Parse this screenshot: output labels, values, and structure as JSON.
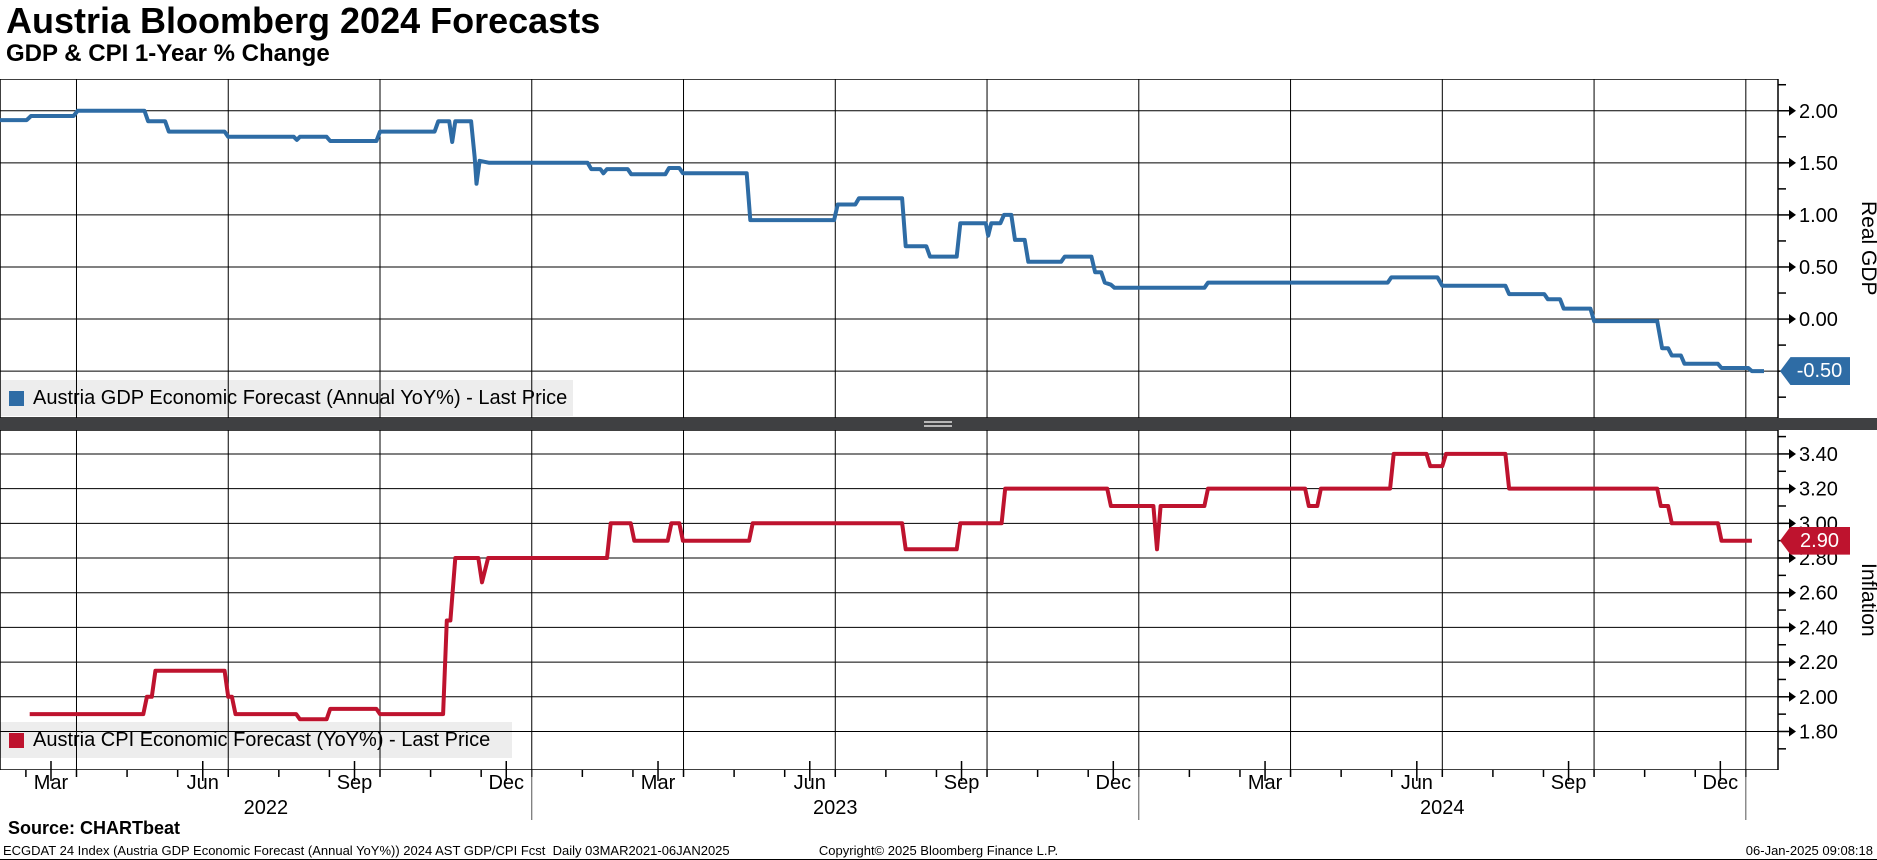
{
  "header": {
    "title": "Austria Bloomberg 2024 Forecasts",
    "subtitle": "GDP & CPI 1-Year % Change"
  },
  "footer": {
    "source": "Source: CHARTbeat",
    "index_line": "ECGDAT 24 Index (Austria GDP Economic Forecast (Annual YoY%)) 2024 AST GDP/CPI Fcst  Daily 03MAR2021-06JAN2025",
    "copyright": "Copyright© 2025 Bloomberg Finance L.P.",
    "timestamp": "06-Jan-2025 09:08:18"
  },
  "colors": {
    "gdp_line": "#2e6ca5",
    "cpi_line": "#be132e",
    "grid": "#000000",
    "legend_band": "#ededed",
    "divider": "#3f4042",
    "divider_handle": "#b8b8b8",
    "badge_text": "#ffffff"
  },
  "chart_data": {
    "type": "line",
    "title": "Austria Bloomberg 2024 Forecasts",
    "subtitle": "GDP & CPI 1-Year % Change",
    "x_axis": {
      "unit": "decimal_year",
      "range": [
        2022.124,
        2025.053
      ],
      "gridlines": [
        2022.25,
        2022.5,
        2022.75,
        2023.0,
        2023.25,
        2023.5,
        2023.75,
        2024.0,
        2024.25,
        2024.5,
        2024.75,
        2025.0
      ],
      "year_separators": [
        2023.0,
        2024.0,
        2025.0
      ],
      "month_labels": [
        {
          "t": 2022.208,
          "label": "Mar"
        },
        {
          "t": 2022.458,
          "label": "Jun"
        },
        {
          "t": 2022.708,
          "label": "Sep"
        },
        {
          "t": 2022.958,
          "label": "Dec"
        },
        {
          "t": 2023.208,
          "label": "Mar"
        },
        {
          "t": 2023.458,
          "label": "Jun"
        },
        {
          "t": 2023.708,
          "label": "Sep"
        },
        {
          "t": 2023.958,
          "label": "Dec"
        },
        {
          "t": 2024.208,
          "label": "Mar"
        },
        {
          "t": 2024.458,
          "label": "Jun"
        },
        {
          "t": 2024.708,
          "label": "Sep"
        },
        {
          "t": 2024.958,
          "label": "Dec"
        }
      ],
      "year_labels": [
        {
          "t": 2022.562,
          "label": "2022"
        },
        {
          "t": 2023.5,
          "label": "2023"
        },
        {
          "t": 2024.5,
          "label": "2024"
        }
      ]
    },
    "panels": [
      {
        "id": "gdp",
        "axis_title": "Real GDP",
        "y_range": [
          -0.95,
          2.305
        ],
        "minor_tick_step": 0.25,
        "major_ticks": [
          {
            "v": 2.0,
            "label": "2.00"
          },
          {
            "v": 1.5,
            "label": "1.50"
          },
          {
            "v": 1.0,
            "label": "1.00"
          },
          {
            "v": 0.5,
            "label": "0.50"
          },
          {
            "v": 0.0,
            "label": "0.00"
          },
          {
            "v": -0.5,
            "label": "-0.50"
          }
        ],
        "legend": {
          "label": "Austria GDP Economic Forecast (Annual YoY%) - Last Price"
        },
        "last_price": {
          "value": -0.5,
          "label": "-0.50"
        },
        "series": {
          "name": "Austria GDP Economic Forecast (Annual YoY%)",
          "color": "#2e6ca5",
          "points": [
            [
              2022.124,
              1.91
            ],
            [
              2022.168,
              1.91
            ],
            [
              2022.175,
              1.95
            ],
            [
              2022.245,
              1.95
            ],
            [
              2022.252,
              2.0
            ],
            [
              2022.362,
              2.0
            ],
            [
              2022.368,
              1.9
            ],
            [
              2022.396,
              1.9
            ],
            [
              2022.402,
              1.8
            ],
            [
              2022.494,
              1.8
            ],
            [
              2022.5,
              1.75
            ],
            [
              2022.608,
              1.75
            ],
            [
              2022.613,
              1.72
            ],
            [
              2022.618,
              1.75
            ],
            [
              2022.662,
              1.75
            ],
            [
              2022.668,
              1.71
            ],
            [
              2022.744,
              1.71
            ],
            [
              2022.75,
              1.8
            ],
            [
              2022.84,
              1.8
            ],
            [
              2022.846,
              1.9
            ],
            [
              2022.864,
              1.9
            ],
            [
              2022.869,
              1.7
            ],
            [
              2022.874,
              1.9
            ],
            [
              2022.9,
              1.9
            ],
            [
              2022.906,
              1.55
            ],
            [
              2022.909,
              1.3
            ],
            [
              2022.914,
              1.52
            ],
            [
              2022.93,
              1.5
            ],
            [
              2023.092,
              1.5
            ],
            [
              2023.098,
              1.44
            ],
            [
              2023.113,
              1.44
            ],
            [
              2023.118,
              1.4
            ],
            [
              2023.124,
              1.44
            ],
            [
              2023.158,
              1.44
            ],
            [
              2023.164,
              1.39
            ],
            [
              2023.22,
              1.39
            ],
            [
              2023.226,
              1.45
            ],
            [
              2023.243,
              1.45
            ],
            [
              2023.249,
              1.4
            ],
            [
              2023.354,
              1.4
            ],
            [
              2023.36,
              0.95
            ],
            [
              2023.498,
              0.95
            ],
            [
              2023.504,
              1.1
            ],
            [
              2023.533,
              1.1
            ],
            [
              2023.539,
              1.16
            ],
            [
              2023.61,
              1.16
            ],
            [
              2023.616,
              0.7
            ],
            [
              2023.65,
              0.7
            ],
            [
              2023.656,
              0.6
            ],
            [
              2023.7,
              0.6
            ],
            [
              2023.706,
              0.92
            ],
            [
              2023.748,
              0.92
            ],
            [
              2023.752,
              0.8
            ],
            [
              2023.757,
              0.92
            ],
            [
              2023.772,
              0.92
            ],
            [
              2023.778,
              1.0
            ],
            [
              2023.79,
              1.0
            ],
            [
              2023.796,
              0.76
            ],
            [
              2023.812,
              0.76
            ],
            [
              2023.818,
              0.55
            ],
            [
              2023.872,
              0.55
            ],
            [
              2023.878,
              0.6
            ],
            [
              2023.922,
              0.6
            ],
            [
              2023.928,
              0.45
            ],
            [
              2023.938,
              0.45
            ],
            [
              2023.944,
              0.35
            ],
            [
              2023.954,
              0.33
            ],
            [
              2023.96,
              0.3
            ],
            [
              2024.108,
              0.3
            ],
            [
              2024.114,
              0.35
            ],
            [
              2024.41,
              0.35
            ],
            [
              2024.416,
              0.4
            ],
            [
              2024.492,
              0.4
            ],
            [
              2024.5,
              0.32
            ],
            [
              2024.604,
              0.32
            ],
            [
              2024.61,
              0.24
            ],
            [
              2024.668,
              0.24
            ],
            [
              2024.674,
              0.19
            ],
            [
              2024.694,
              0.19
            ],
            [
              2024.7,
              0.1
            ],
            [
              2024.744,
              0.1
            ],
            [
              2024.75,
              -0.02
            ],
            [
              2024.854,
              -0.02
            ],
            [
              2024.862,
              -0.28
            ],
            [
              2024.872,
              -0.28
            ],
            [
              2024.878,
              -0.35
            ],
            [
              2024.893,
              -0.35
            ],
            [
              2024.899,
              -0.43
            ],
            [
              2024.954,
              -0.43
            ],
            [
              2024.96,
              -0.47
            ],
            [
              2025.004,
              -0.47
            ],
            [
              2025.01,
              -0.5
            ],
            [
              2025.03,
              -0.5
            ]
          ]
        }
      },
      {
        "id": "cpi",
        "axis_title": "Inflation",
        "y_range": [
          1.578,
          3.538
        ],
        "minor_tick_step": 0.1,
        "major_ticks": [
          {
            "v": 3.4,
            "label": "3.40"
          },
          {
            "v": 3.2,
            "label": "3.20"
          },
          {
            "v": 3.0,
            "label": "3.00"
          },
          {
            "v": 2.8,
            "label": "2.80"
          },
          {
            "v": 2.6,
            "label": "2.60"
          },
          {
            "v": 2.4,
            "label": "2.40"
          },
          {
            "v": 2.2,
            "label": "2.20"
          },
          {
            "v": 2.0,
            "label": "2.00"
          },
          {
            "v": 1.8,
            "label": "1.80"
          }
        ],
        "legend": {
          "label": "Austria CPI Economic Forecast (YoY%) - Last Price"
        },
        "last_price": {
          "value": 2.9,
          "label": "2.90"
        },
        "series": {
          "name": "Austria CPI Economic Forecast (YoY%)",
          "color": "#be132e",
          "points": [
            [
              2022.173,
              1.9
            ],
            [
              2022.36,
              1.9
            ],
            [
              2022.366,
              2.0
            ],
            [
              2022.374,
              2.0
            ],
            [
              2022.38,
              2.15
            ],
            [
              2022.494,
              2.15
            ],
            [
              2022.5,
              2.0
            ],
            [
              2022.506,
              2.0
            ],
            [
              2022.512,
              1.9
            ],
            [
              2022.612,
              1.9
            ],
            [
              2022.618,
              1.87
            ],
            [
              2022.662,
              1.87
            ],
            [
              2022.668,
              1.93
            ],
            [
              2022.744,
              1.93
            ],
            [
              2022.75,
              1.9
            ],
            [
              2022.854,
              1.9
            ],
            [
              2022.86,
              2.44
            ],
            [
              2022.866,
              2.44
            ],
            [
              2022.874,
              2.8
            ],
            [
              2022.912,
              2.8
            ],
            [
              2022.918,
              2.66
            ],
            [
              2022.928,
              2.8
            ],
            [
              2023.124,
              2.8
            ],
            [
              2023.13,
              3.0
            ],
            [
              2023.163,
              3.0
            ],
            [
              2023.169,
              2.9
            ],
            [
              2023.224,
              2.9
            ],
            [
              2023.23,
              3.0
            ],
            [
              2023.243,
              3.0
            ],
            [
              2023.249,
              2.9
            ],
            [
              2023.358,
              2.9
            ],
            [
              2023.364,
              3.0
            ],
            [
              2023.61,
              3.0
            ],
            [
              2023.616,
              2.85
            ],
            [
              2023.7,
              2.85
            ],
            [
              2023.706,
              3.0
            ],
            [
              2023.774,
              3.0
            ],
            [
              2023.78,
              3.2
            ],
            [
              2023.948,
              3.2
            ],
            [
              2023.954,
              3.1
            ],
            [
              2024.024,
              3.1
            ],
            [
              2024.03,
              2.85
            ],
            [
              2024.036,
              3.1
            ],
            [
              2024.108,
              3.1
            ],
            [
              2024.114,
              3.2
            ],
            [
              2024.274,
              3.2
            ],
            [
              2024.28,
              3.1
            ],
            [
              2024.294,
              3.1
            ],
            [
              2024.3,
              3.2
            ],
            [
              2024.414,
              3.2
            ],
            [
              2024.42,
              3.4
            ],
            [
              2024.474,
              3.4
            ],
            [
              2024.48,
              3.33
            ],
            [
              2024.5,
              3.33
            ],
            [
              2024.506,
              3.4
            ],
            [
              2024.604,
              3.4
            ],
            [
              2024.61,
              3.2
            ],
            [
              2024.854,
              3.2
            ],
            [
              2024.86,
              3.1
            ],
            [
              2024.872,
              3.1
            ],
            [
              2024.878,
              3.0
            ],
            [
              2024.954,
              3.0
            ],
            [
              2024.96,
              2.9
            ],
            [
              2025.01,
              2.9
            ]
          ]
        }
      }
    ]
  }
}
